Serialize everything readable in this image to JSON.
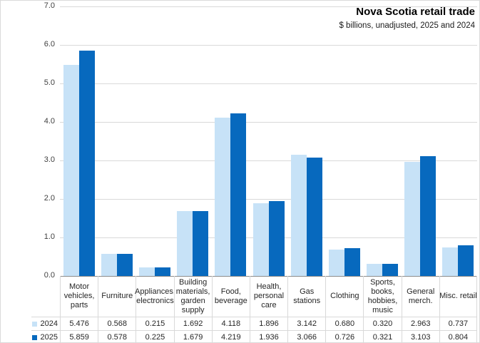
{
  "header": {
    "title": "Nova Scotia retail trade",
    "subtitle": "$ billions, unadjusted, 2025 and 2024"
  },
  "colors": {
    "series_2024": "#C7E2F7",
    "series_2025": "#0769BE",
    "gridline": "#D9D9D9",
    "axis_line": "#8C8C8C",
    "table_border": "#D9D9D9",
    "text": "#262626"
  },
  "chart_data": {
    "type": "bar",
    "title": "Nova Scotia retail trade",
    "subtitle": "$ billions, unadjusted, 2025 and 2024",
    "unit": "$ billions",
    "ylim": [
      0,
      7
    ],
    "y_ticks": [
      "7.0",
      "6.0",
      "5.0",
      "4.0",
      "3.0",
      "2.0",
      "1.0",
      "0.0"
    ],
    "grid": true,
    "legend_position": "data-table left keys",
    "categories": [
      "Motor vehicles, parts",
      "Furniture",
      "Appliances, electronics",
      "Building materials, garden supply",
      "Food, beverage",
      "Health, personal care",
      "Gas stations",
      "Clothing",
      "Sports, books, hobbies, music",
      "General merch.",
      "Misc. retail"
    ],
    "category_label_lines": [
      [
        "Motor",
        "vehicles,",
        "parts"
      ],
      [
        "Furniture"
      ],
      [
        "Appliances,",
        "electronics"
      ],
      [
        "Building",
        "materials,",
        "garden",
        "supply"
      ],
      [
        "Food,",
        "beverage"
      ],
      [
        "Health,",
        "personal",
        "care"
      ],
      [
        "Gas",
        "stations"
      ],
      [
        "Clothing"
      ],
      [
        "Sports,",
        "books,",
        "hobbies,",
        "music"
      ],
      [
        "General",
        "merch."
      ],
      [
        "Misc. retail"
      ]
    ],
    "series": [
      {
        "name": "2024",
        "color": "#C7E2F7",
        "values": [
          5.476,
          0.568,
          0.215,
          1.692,
          4.118,
          1.896,
          3.142,
          0.68,
          0.32,
          2.963,
          0.737
        ]
      },
      {
        "name": "2025",
        "color": "#0769BE",
        "values": [
          5.859,
          0.578,
          0.225,
          1.679,
          4.219,
          1.936,
          3.066,
          0.726,
          0.321,
          3.103,
          0.804
        ]
      }
    ],
    "value_decimals": 3
  }
}
